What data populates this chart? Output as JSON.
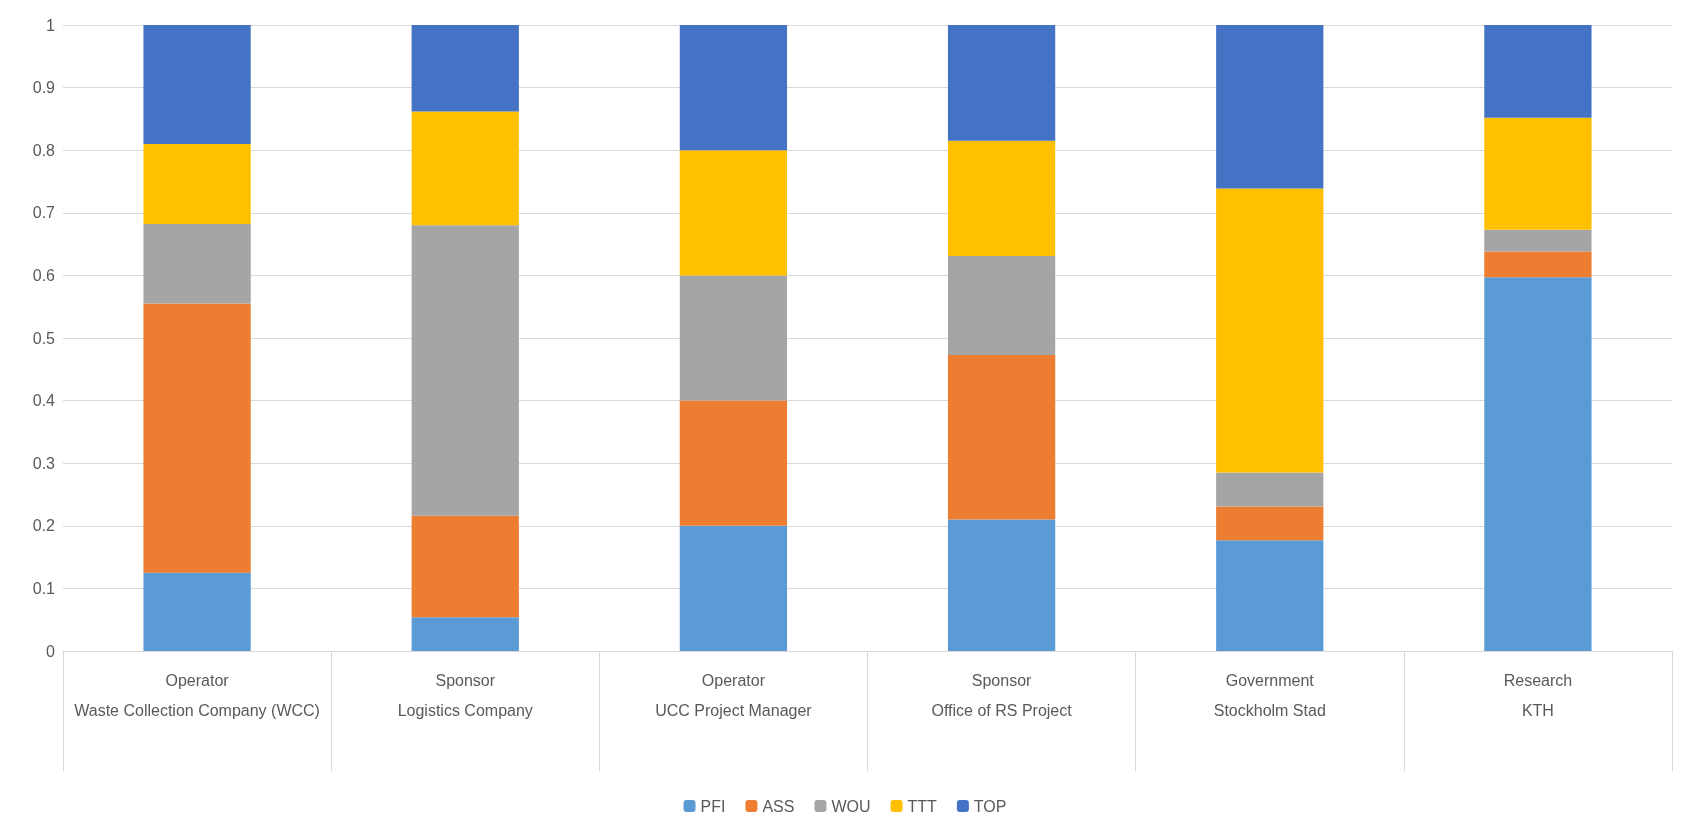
{
  "chart_data": {
    "type": "bar",
    "stacked": true,
    "categories": [
      "Operator\nWaste Collection Company (WCC)",
      "Sponsor\nLogistics Company",
      "Operator\nUCC Project Manager",
      "Sponsor\nOffice of RS Project",
      "Government\nStockholm Stad",
      "Research\nKTH"
    ],
    "series": [
      {
        "name": "PFI",
        "color": "#5b9bd5",
        "values": [
          0.125,
          0.054,
          0.2,
          0.21,
          0.177,
          0.597
        ]
      },
      {
        "name": "ASS",
        "color": "#ed7d31",
        "values": [
          0.43,
          0.162,
          0.2,
          0.263,
          0.054,
          0.041
        ]
      },
      {
        "name": "WOU",
        "color": "#a5a5a5",
        "values": [
          0.127,
          0.464,
          0.2,
          0.158,
          0.054,
          0.035
        ]
      },
      {
        "name": "TTT",
        "color": "#ffc000",
        "values": [
          0.128,
          0.182,
          0.2,
          0.184,
          0.454,
          0.179
        ]
      },
      {
        "name": "TOP",
        "color": "#4472c4",
        "values": [
          0.19,
          0.138,
          0.2,
          0.185,
          0.261,
          0.148
        ]
      }
    ],
    "ylim": [
      0,
      1
    ],
    "yticks": [
      0,
      0.1,
      0.2,
      0.3,
      0.4,
      0.5,
      0.6,
      0.7,
      0.8,
      0.9,
      1
    ],
    "grid": "y",
    "legend": "bottom"
  }
}
